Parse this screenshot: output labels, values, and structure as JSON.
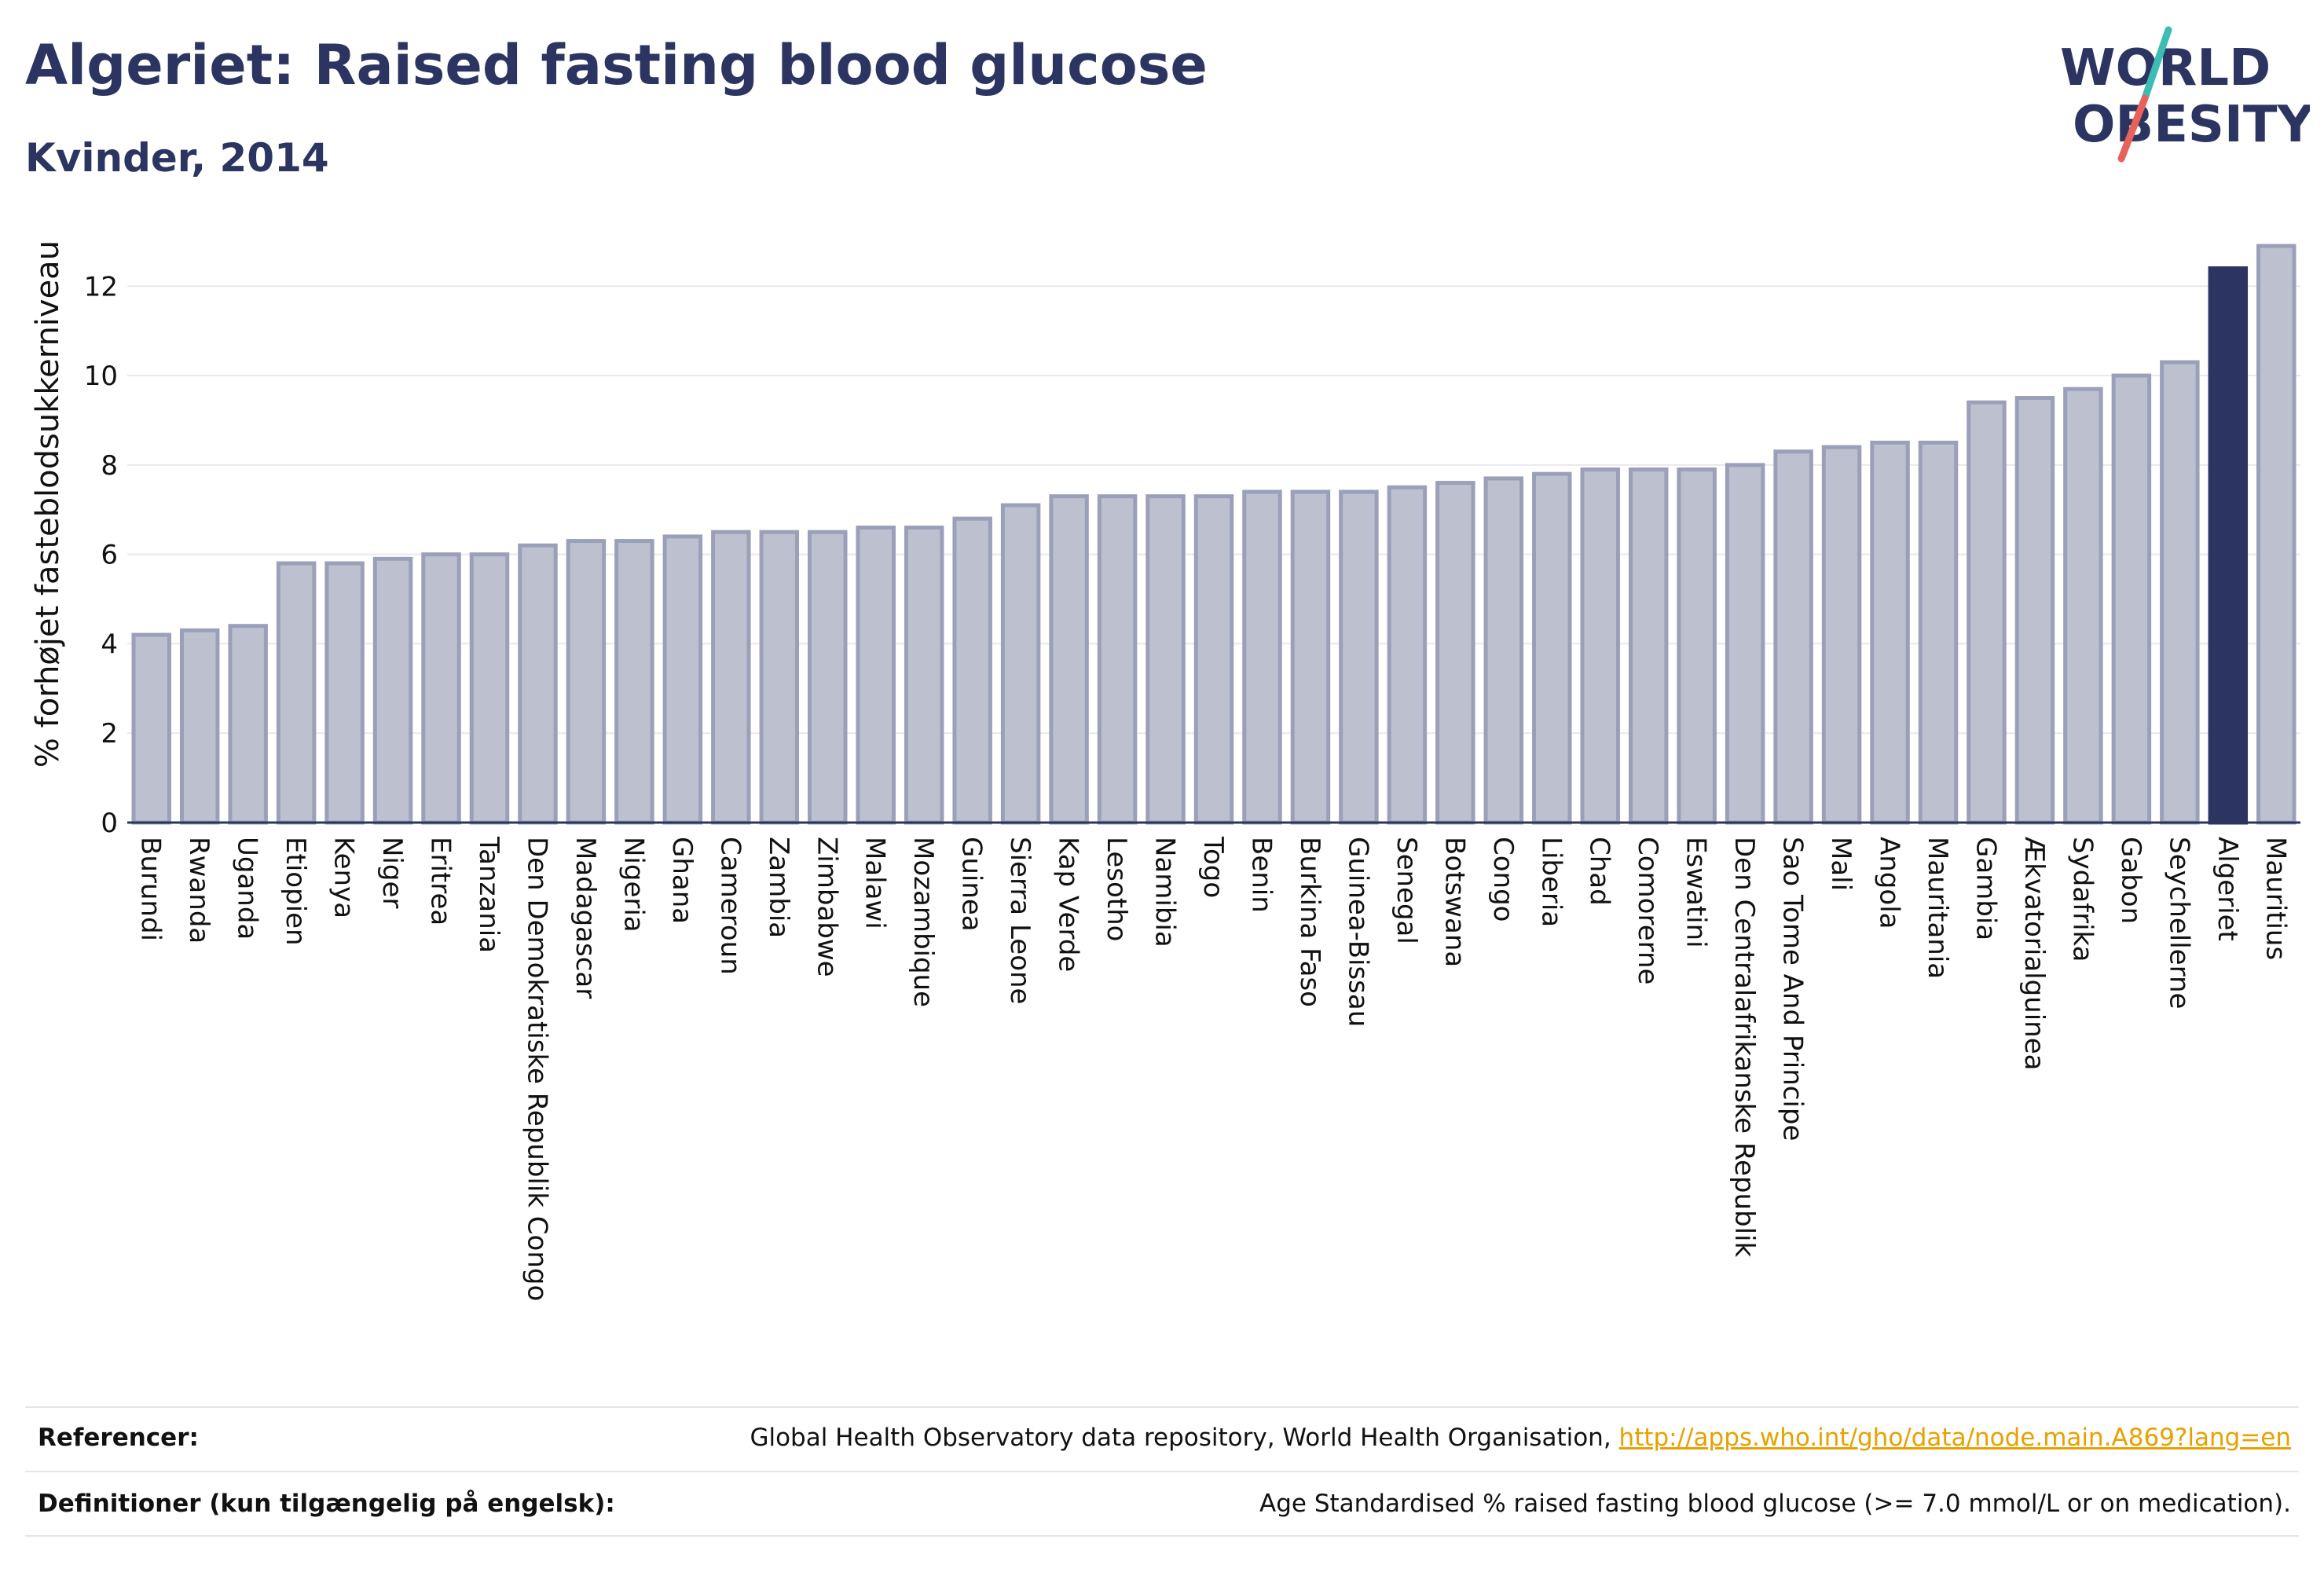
{
  "header": {
    "title": "Algeriet: Raised fasting blood glucose",
    "subtitle": "Kvinder, 2014"
  },
  "logo": {
    "line1": "WORLD",
    "line2": "OBESITY",
    "text_color": "#2c3561",
    "slash_top_color": "#3bbdb4",
    "slash_bottom_color": "#e8625a"
  },
  "chart_data": {
    "type": "bar",
    "ylabel": "% forhøjet fasteblodsukkerniveau",
    "xlabel": "",
    "ylim": [
      0,
      13.2
    ],
    "yticks": [
      0,
      2,
      4,
      6,
      8,
      10,
      12
    ],
    "grid": true,
    "highlight": "Algeriet",
    "colors": {
      "bar_fill": "#bcc0cf",
      "bar_edge": "#9aa0b8",
      "highlight_fill": "#2c3561",
      "grid": "#e8e8ee",
      "axis": "#2c3561",
      "text": "#111111"
    },
    "categories": [
      "Burundi",
      "Rwanda",
      "Uganda",
      "Etiopien",
      "Kenya",
      "Niger",
      "Eritrea",
      "Tanzania",
      "Den Demokratiske Republik Congo",
      "Madagascar",
      "Nigeria",
      "Ghana",
      "Cameroun",
      "Zambia",
      "Zimbabwe",
      "Malawi",
      "Mozambique",
      "Guinea",
      "Sierra Leone",
      "Kap Verde",
      "Lesotho",
      "Namibia",
      "Togo",
      "Benin",
      "Burkina Faso",
      "Guinea-Bissau",
      "Senegal",
      "Botswana",
      "Congo",
      "Liberia",
      "Chad",
      "Comorerne",
      "Eswatini",
      "Den Centralafrikanske Republik",
      "Sao Tome And Principe",
      "Mali",
      "Angola",
      "Mauritania",
      "Gambia",
      "Ækvatorialguinea",
      "Sydafrika",
      "Gabon",
      "Seychellerne",
      "Algeriet",
      "Mauritius"
    ],
    "values": [
      4.2,
      4.3,
      4.4,
      5.8,
      5.8,
      5.9,
      6.0,
      6.0,
      6.2,
      6.3,
      6.3,
      6.4,
      6.5,
      6.5,
      6.5,
      6.6,
      6.6,
      6.8,
      7.1,
      7.3,
      7.3,
      7.3,
      7.3,
      7.4,
      7.4,
      7.4,
      7.5,
      7.6,
      7.7,
      7.8,
      7.9,
      7.9,
      7.9,
      8.0,
      8.3,
      8.4,
      8.5,
      8.5,
      9.4,
      9.5,
      9.7,
      10.0,
      10.3,
      12.4,
      12.9
    ]
  },
  "footer": {
    "references_label": "Referencer:",
    "references_text": "Global Health Observatory data repository, World Health Organisation, ",
    "references_link": "http://apps.who.int/gho/data/node.main.A869?lang=en",
    "definitions_label": "Definitioner (kun tilgængelig på engelsk):",
    "definitions_text": "Age Standardised % raised fasting blood glucose (>= 7.0 mmol/L or on medication)."
  }
}
